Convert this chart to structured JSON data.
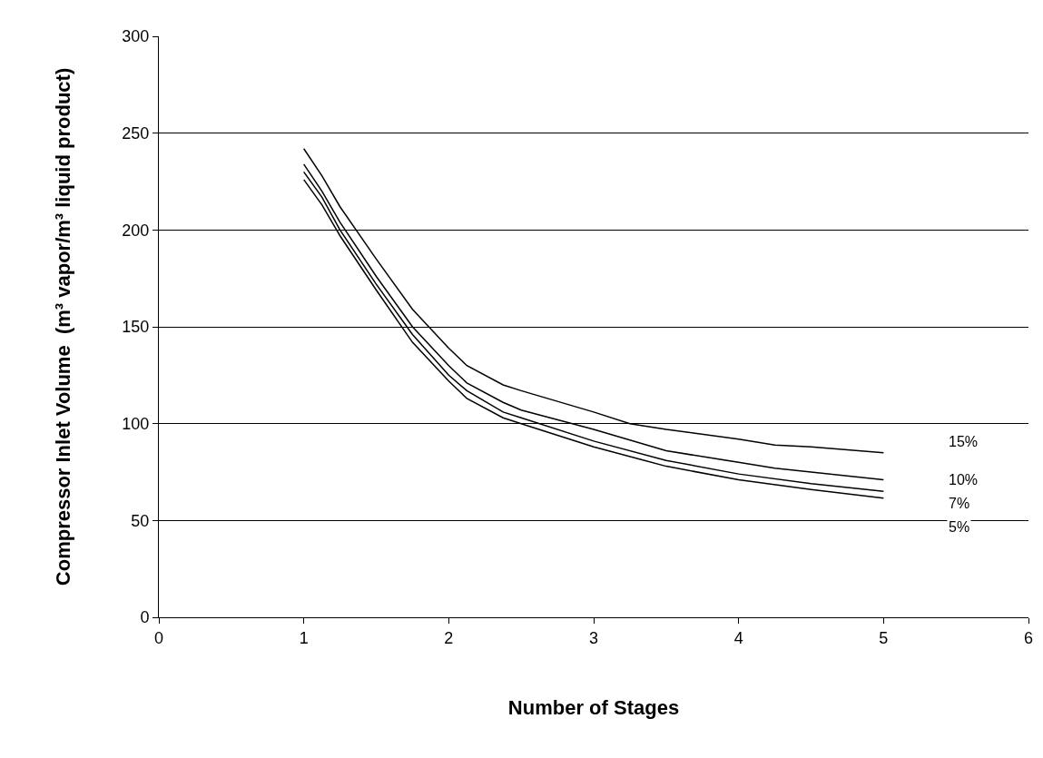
{
  "chart_data": {
    "type": "line",
    "xlabel": "Number of Stages",
    "ylabel": "Compressor Inlet Volume  (m³ vapor/m³ liquid product)",
    "xlim": [
      0,
      6
    ],
    "xticks": [
      0,
      1,
      2,
      3,
      4,
      5,
      6
    ],
    "ylim": [
      0,
      300
    ],
    "yticks": [
      0,
      50,
      100,
      150,
      200,
      250,
      300
    ],
    "grid": "y",
    "legend": false,
    "marker": "none",
    "line_style": "solid",
    "series": [
      {
        "name": "15%",
        "color": "#000000",
        "x": [
          1,
          1.125,
          1.25,
          1.5,
          1.75,
          2,
          2.125,
          2.375,
          2.5,
          3,
          3.25,
          3.5,
          4,
          4.25,
          4.5,
          5
        ],
        "values": [
          242,
          228,
          212,
          185,
          159,
          139,
          130,
          120,
          117,
          106,
          100,
          97,
          92,
          89,
          88,
          85
        ]
      },
      {
        "name": "10%",
        "color": "#000000",
        "x": [
          1,
          1.125,
          1.25,
          1.5,
          1.75,
          2,
          2.125,
          2.375,
          2.5,
          3,
          3.5,
          4,
          4.25,
          4.5,
          5
        ],
        "values": [
          234,
          220,
          204,
          176,
          150,
          130,
          121,
          111,
          107,
          97,
          86,
          80,
          77,
          75,
          71
        ]
      },
      {
        "name": "7%",
        "color": "#000000",
        "x": [
          1,
          1.125,
          1.25,
          1.5,
          1.75,
          2,
          2.125,
          2.375,
          2.5,
          3,
          3.5,
          4,
          4.5,
          5
        ],
        "values": [
          230,
          217,
          200,
          172,
          146,
          125,
          117,
          106,
          103,
          91,
          81,
          74,
          69,
          65
        ]
      },
      {
        "name": "5%",
        "color": "#000000",
        "x": [
          1,
          1.125,
          1.25,
          1.5,
          1.75,
          2,
          2.125,
          2.375,
          2.5,
          3,
          3.5,
          4,
          4.5,
          5
        ],
        "values": [
          226,
          213,
          197,
          169,
          142,
          122,
          113,
          103,
          100,
          88,
          78,
          71,
          66,
          61.5
        ]
      }
    ]
  }
}
